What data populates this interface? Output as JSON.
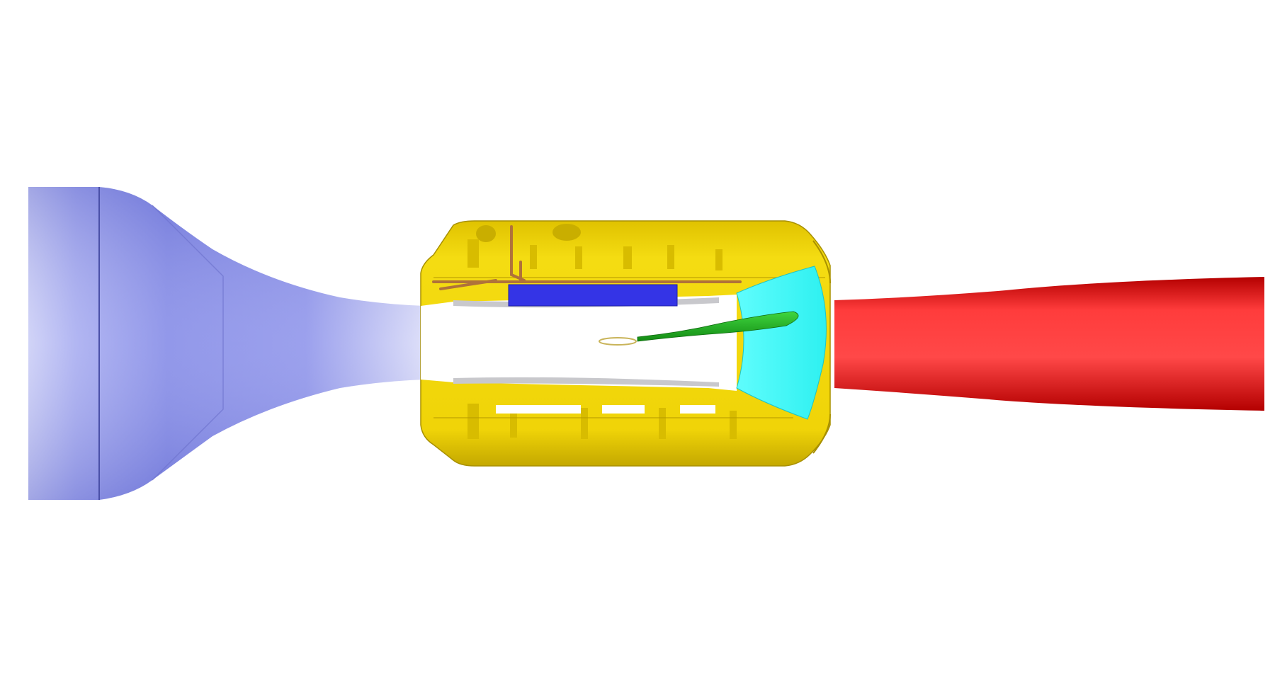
{
  "diagram": {
    "kind": "cross-section render of a flow path through a housing",
    "labels": [],
    "colors": {
      "background": "#ffffff",
      "inlet": "#7f86e6",
      "inlet_light": "#c9ccf6",
      "inlet_dark": "#5b62c4",
      "housing": "#f2d70a",
      "housing_dark": "#c4a800",
      "pipe": "#b0723a",
      "blue_block": "#3434e6",
      "bore": "#ffffff",
      "bore_shadow": "#c8c8cc",
      "cyan_section": "#3dfcfc",
      "green_blade": "#22b222",
      "outlet": "#ff3c3c",
      "outlet_dark": "#b40000"
    }
  }
}
